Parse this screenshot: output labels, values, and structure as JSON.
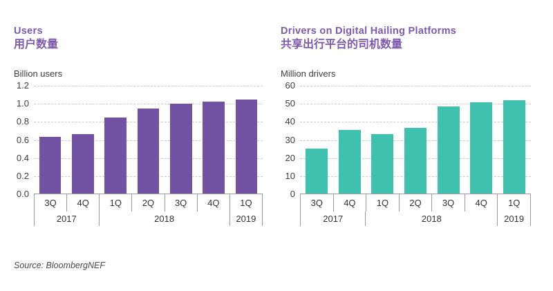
{
  "page": {
    "source": "Source: BloombergNEF"
  },
  "colors": {
    "title": "#7e5aad",
    "users_bar": "#7253a3",
    "drivers_bar": "#40c0ae",
    "gridline": "#c9c9c9",
    "axis": "#9a9a9a",
    "text": "#3d3d3d"
  },
  "chart_data": [
    {
      "type": "bar",
      "title": "Users",
      "title_zh": "用户数量",
      "ylabel": "Billion users",
      "xlabel": "",
      "categories": [
        "3Q 2017",
        "4Q 2017",
        "1Q 2018",
        "2Q 2018",
        "3Q 2018",
        "4Q 2018",
        "1Q 2019"
      ],
      "quarter_labels": [
        "3Q",
        "4Q",
        "1Q",
        "2Q",
        "3Q",
        "4Q",
        "1Q"
      ],
      "year_groups": [
        {
          "label": "2017",
          "span": 2
        },
        {
          "label": "2018",
          "span": 4
        },
        {
          "label": "2019",
          "span": 1
        }
      ],
      "values": [
        0.63,
        0.66,
        0.84,
        0.94,
        0.99,
        1.02,
        1.04
      ],
      "ylim": [
        0,
        1.2
      ],
      "yticks": [
        0,
        0.2,
        0.4,
        0.6,
        0.8,
        1.0,
        1.2
      ],
      "ytick_labels": [
        "0.0",
        "0.2",
        "0.4",
        "0.6",
        "0.8",
        "1.0",
        "1.2"
      ],
      "bar_color": "#7253a3",
      "grid": "horizontal-dashed",
      "legend": "none"
    },
    {
      "type": "bar",
      "title": "Drivers on Digital Hailing Platforms",
      "title_zh": "共享出行平台的司机数量",
      "ylabel": "Million drivers",
      "xlabel": "",
      "categories": [
        "3Q 2017",
        "4Q 2017",
        "1Q 2018",
        "2Q 2018",
        "3Q 2018",
        "4Q 2018",
        "1Q 2019"
      ],
      "quarter_labels": [
        "3Q",
        "4Q",
        "1Q",
        "2Q",
        "3Q",
        "4Q",
        "1Q"
      ],
      "year_groups": [
        {
          "label": "2017",
          "span": 2
        },
        {
          "label": "2018",
          "span": 4
        },
        {
          "label": "2019",
          "span": 1
        }
      ],
      "values": [
        25,
        35,
        33,
        36.5,
        48,
        50.5,
        51.5
      ],
      "ylim": [
        0,
        60
      ],
      "yticks": [
        0,
        10,
        20,
        30,
        40,
        50,
        60
      ],
      "ytick_labels": [
        "0",
        "10",
        "20",
        "30",
        "40",
        "50",
        "60"
      ],
      "bar_color": "#40c0ae",
      "grid": "horizontal-dashed",
      "legend": "none"
    }
  ]
}
